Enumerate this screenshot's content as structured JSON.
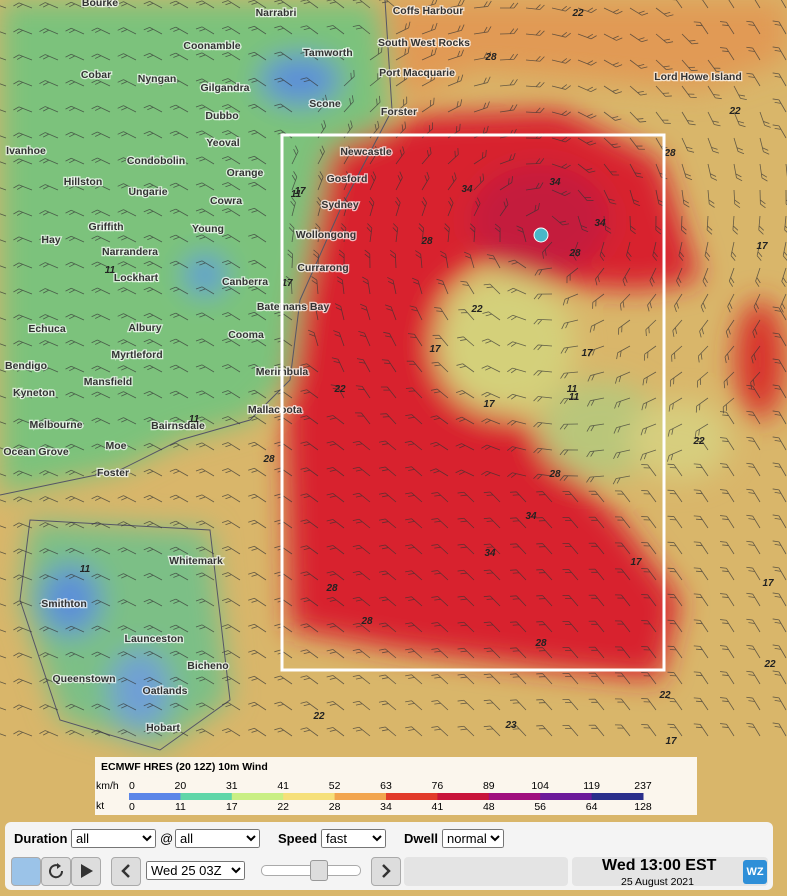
{
  "map": {
    "places": [
      "Bourke",
      "Narrabri",
      "Coffs Harbour",
      "Coonamble",
      "Tamworth",
      "South West Rocks",
      "Cobar",
      "Nyngan",
      "Gilgandra",
      "Port Macquarie",
      "Lord Howe Island",
      "Dubbo",
      "Scone",
      "Forster",
      "Ivanhoe",
      "Yeoval",
      "Newcastle",
      "Condobolin",
      "Orange",
      "Gosford",
      "Hillston",
      "Ungarie",
      "Cowra",
      "Sydney",
      "Griffith",
      "Young",
      "Wollongong",
      "Hay",
      "Narrandera",
      "Currarong",
      "Lockhart",
      "Canberra",
      "Batemans Bay",
      "Echuca",
      "Albury",
      "Cooma",
      "Myrtleford",
      "Merimbula",
      "Bendigo",
      "Mansfield",
      "Kyneton",
      "Mallacoota",
      "Melbourne",
      "Bairnsdale",
      "Moe",
      "Ocean Grove",
      "Foster",
      "Smithton",
      "Whitemark",
      "Launceston",
      "Bicheno",
      "Queenstown",
      "Oatlands",
      "Hobart"
    ],
    "contour_labels": [
      22,
      28,
      17,
      34,
      34,
      34,
      28,
      28,
      22,
      17,
      11,
      17,
      17,
      22,
      28,
      22,
      28,
      34,
      34,
      17,
      17,
      22,
      28,
      28,
      28,
      28,
      22,
      23,
      17,
      22,
      11,
      11,
      17,
      11,
      11,
      11,
      22,
      17
    ]
  },
  "legend": {
    "title": "ECMWF HRES (20 12Z) 10m Wind",
    "unit1": "km/h",
    "values1": [
      0,
      20,
      31,
      41,
      52,
      63,
      76,
      89,
      104,
      119,
      237
    ],
    "unit2": "kt",
    "values2": [
      0,
      11,
      17,
      22,
      28,
      34,
      41,
      48,
      56,
      64,
      128
    ],
    "colors": [
      "#5b86e8",
      "#5fd6a8",
      "#c9ef84",
      "#f6e07a",
      "#f2a54e",
      "#e23a2a",
      "#c8143a",
      "#a0107e",
      "#6c1a9a",
      "#2a2f8c"
    ]
  },
  "controls": {
    "duration_label": "Duration",
    "duration_value": "all",
    "at": "@",
    "at_value": "all",
    "speed_label": "Speed",
    "speed_value": "fast",
    "dwell_label": "Dwell",
    "dwell_value": "normal",
    "time_select": "Wed 25 03Z",
    "time_display": "Wed 13:00 EST",
    "date": "25 August 2021",
    "logo": "WZ"
  }
}
